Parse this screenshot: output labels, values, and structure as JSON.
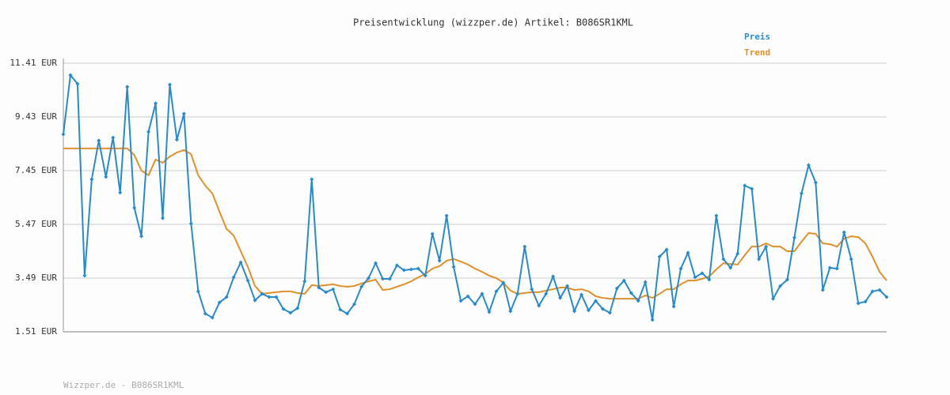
{
  "chart_data": {
    "type": "line",
    "title": "Preisentwicklung (wizzper.de) Artikel: B086SR1KML",
    "footer": "Wizzper.de - B086SR1KML",
    "ylim": [
      1.51,
      11.41
    ],
    "yticks": [
      {
        "value": 1.51,
        "label": "1.51 EUR"
      },
      {
        "value": 3.49,
        "label": "3.49 EUR"
      },
      {
        "value": 5.47,
        "label": "5.47 EUR"
      },
      {
        "value": 7.45,
        "label": "7.45 EUR"
      },
      {
        "value": 9.43,
        "label": "9.43 EUR"
      },
      {
        "value": 11.41,
        "label": "11.41 EUR"
      }
    ],
    "grid": true,
    "legend": "top-right",
    "series": [
      {
        "name": "Preis",
        "color": "#2a8ac8",
        "markers": true,
        "values": [
          8.79,
          10.97,
          10.65,
          3.58,
          7.13,
          8.56,
          7.22,
          8.67,
          6.64,
          10.54,
          6.08,
          5.03,
          8.88,
          9.93,
          5.7,
          10.62,
          8.59,
          9.55,
          5.5,
          3.0,
          2.18,
          2.03,
          2.59,
          2.79,
          3.52,
          4.07,
          3.4,
          2.67,
          2.91,
          2.79,
          2.79,
          2.35,
          2.21,
          2.38,
          3.37,
          7.13,
          3.14,
          2.97,
          3.08,
          2.33,
          2.18,
          2.53,
          3.17,
          3.49,
          4.04,
          3.46,
          3.46,
          3.96,
          3.78,
          3.81,
          3.84,
          3.58,
          5.12,
          4.13,
          5.79,
          3.9,
          2.65,
          2.82,
          2.53,
          2.91,
          2.24,
          3.0,
          3.32,
          2.27,
          2.91,
          4.65,
          3.08,
          2.47,
          2.91,
          3.55,
          2.76,
          3.2,
          2.27,
          2.88,
          2.3,
          2.65,
          2.35,
          2.21,
          3.11,
          3.4,
          2.94,
          2.65,
          3.34,
          1.95,
          4.28,
          4.54,
          2.44,
          3.84,
          4.42,
          3.52,
          3.67,
          3.43,
          5.79,
          4.19,
          3.87,
          4.39,
          6.9,
          6.78,
          4.19,
          4.65,
          2.73,
          3.2,
          3.43,
          4.98,
          6.61,
          7.65,
          7.01,
          3.05,
          3.87,
          3.84,
          5.18,
          4.19,
          2.56,
          2.62,
          3.0,
          3.05,
          2.79
        ]
      },
      {
        "name": "Trend",
        "color": "#e0902a",
        "markers": false,
        "values": [
          8.27,
          8.27,
          8.27,
          8.27,
          8.27,
          8.27,
          8.27,
          8.27,
          8.27,
          8.27,
          8.03,
          7.45,
          7.28,
          7.86,
          7.74,
          7.97,
          8.12,
          8.21,
          8.06,
          7.28,
          6.9,
          6.61,
          5.94,
          5.3,
          5.06,
          4.48,
          3.9,
          3.2,
          2.91,
          2.94,
          2.97,
          3.0,
          3.0,
          2.94,
          2.91,
          3.23,
          3.2,
          3.23,
          3.26,
          3.2,
          3.17,
          3.2,
          3.29,
          3.37,
          3.43,
          3.05,
          3.08,
          3.17,
          3.26,
          3.37,
          3.52,
          3.64,
          3.84,
          3.93,
          4.13,
          4.19,
          4.1,
          3.99,
          3.84,
          3.72,
          3.58,
          3.49,
          3.32,
          3.03,
          2.91,
          2.94,
          2.97,
          2.97,
          3.03,
          3.08,
          3.14,
          3.14,
          3.05,
          3.08,
          3.0,
          2.82,
          2.76,
          2.73,
          2.73,
          2.73,
          2.73,
          2.73,
          2.85,
          2.76,
          2.91,
          3.08,
          3.08,
          3.26,
          3.4,
          3.4,
          3.46,
          3.55,
          3.81,
          4.04,
          4.01,
          3.99,
          4.33,
          4.65,
          4.65,
          4.77,
          4.65,
          4.65,
          4.48,
          4.48,
          4.83,
          5.15,
          5.12,
          4.77,
          4.74,
          4.65,
          4.94,
          5.03,
          5.0,
          4.77,
          4.28,
          3.72,
          3.4
        ]
      }
    ]
  }
}
